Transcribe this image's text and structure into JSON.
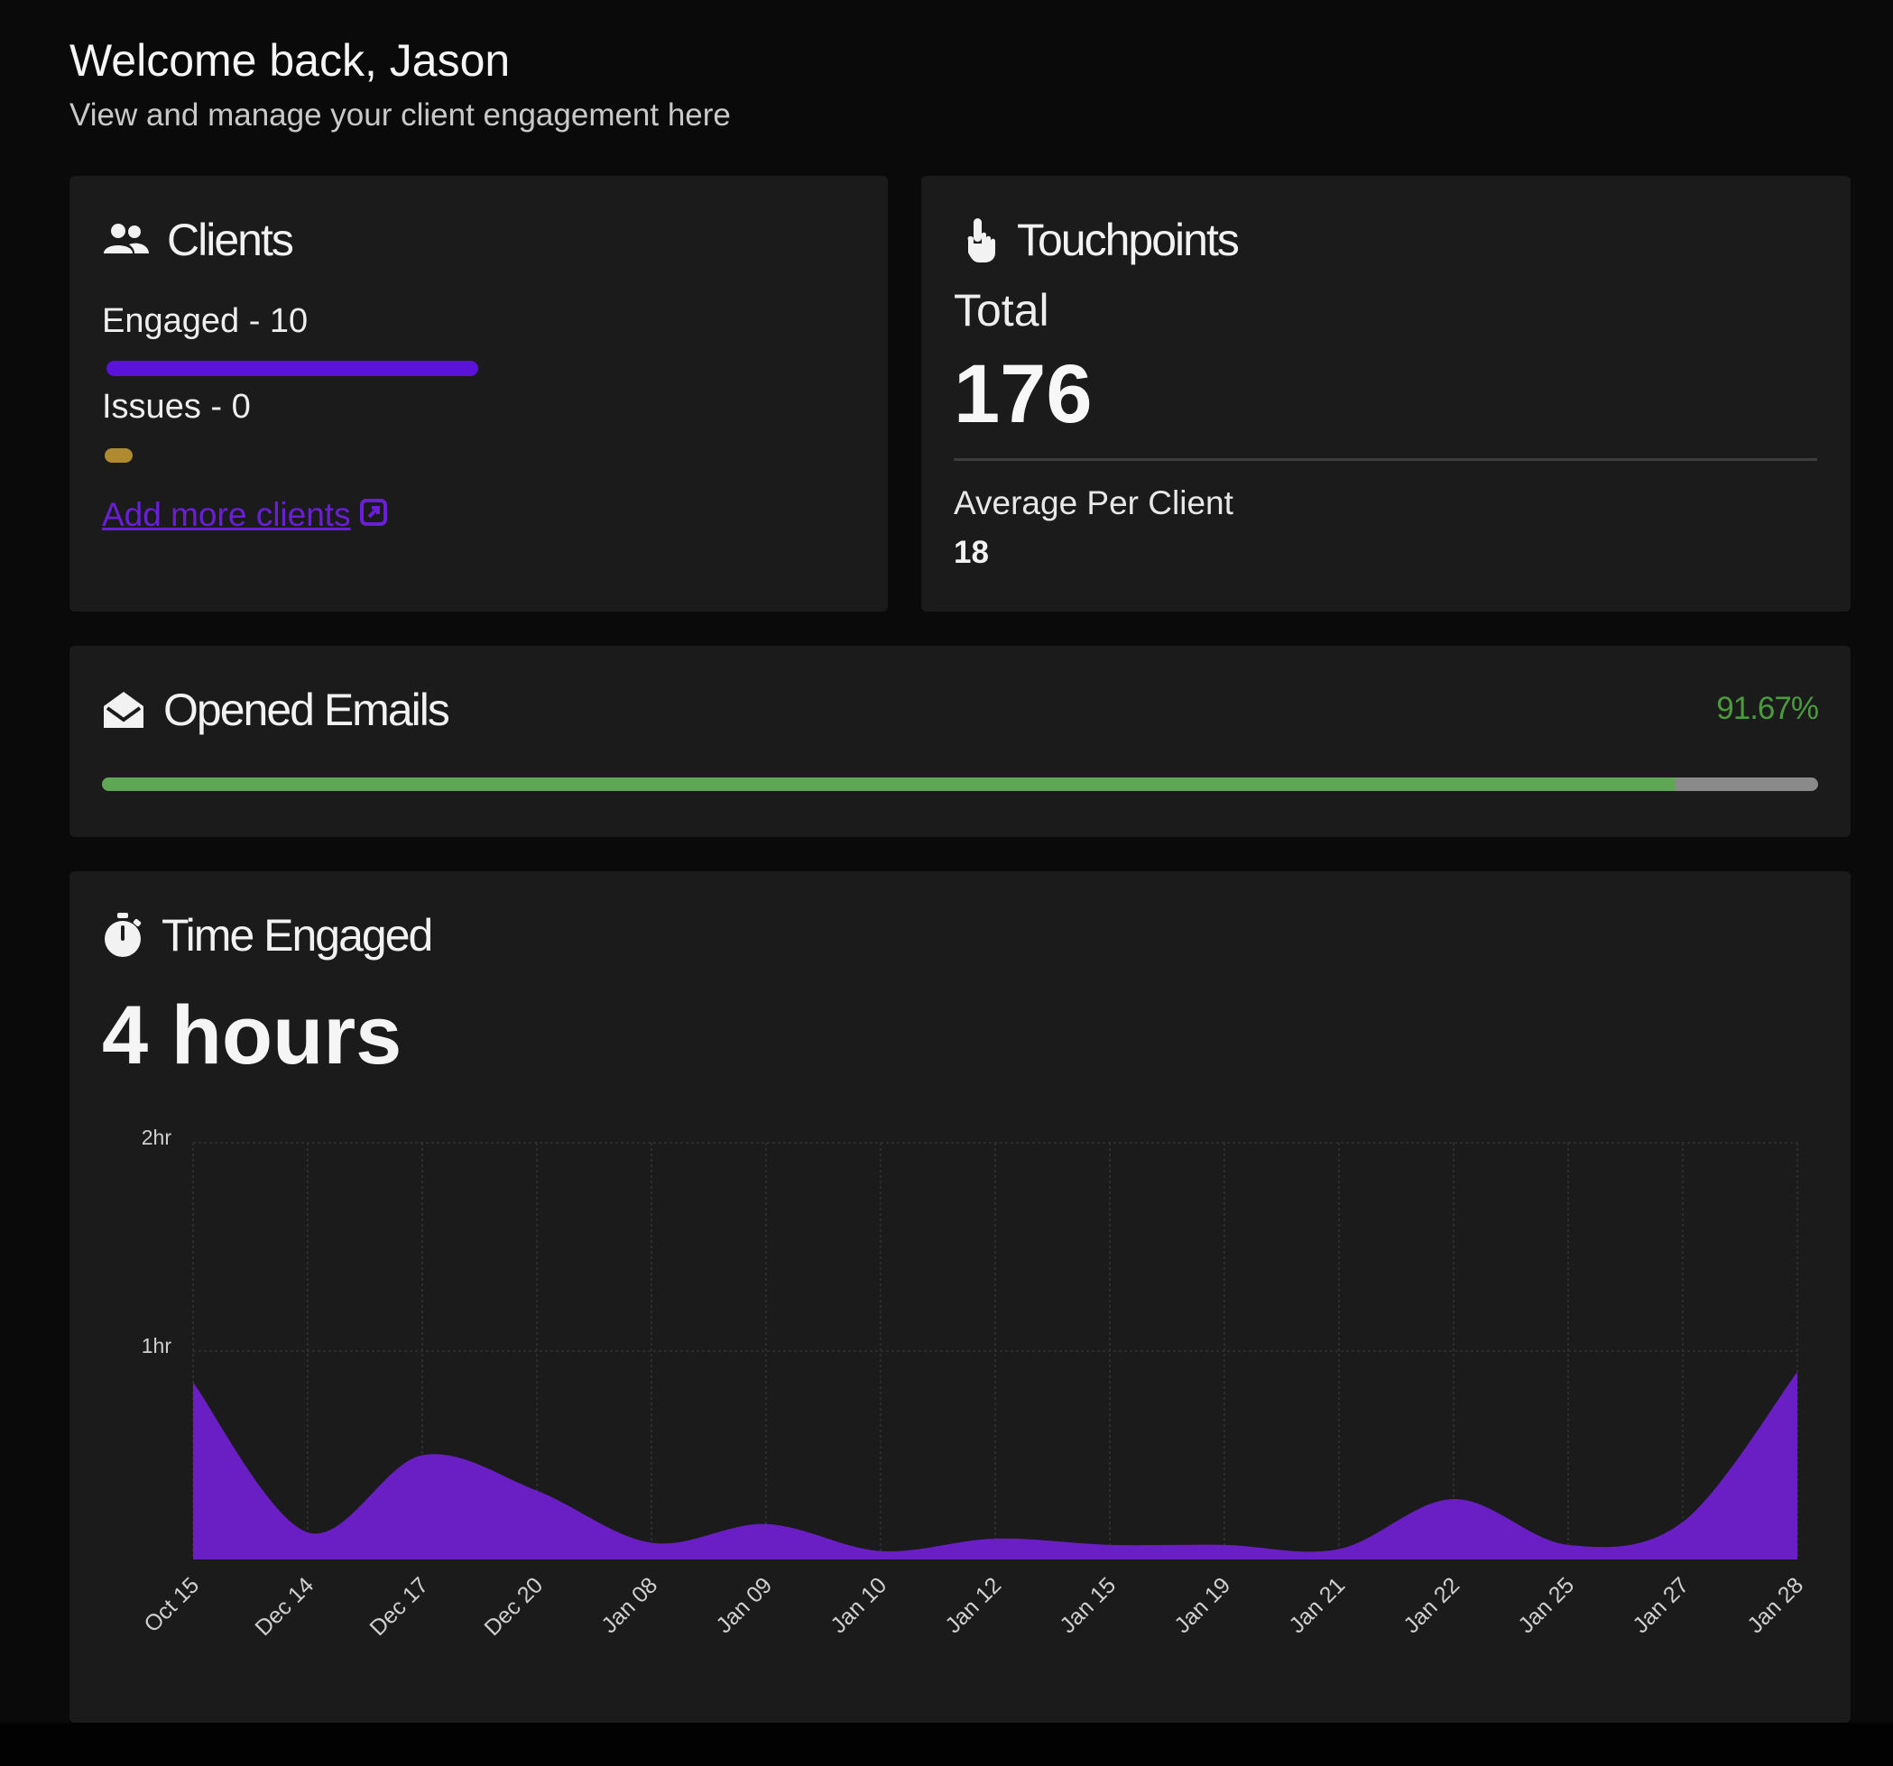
{
  "header": {
    "title": "Welcome back, Jason",
    "subtitle": "View and manage your client engagement here"
  },
  "clients": {
    "title": "Clients",
    "icon": "users-icon",
    "engaged_label": "Engaged - 10",
    "engaged_count": 10,
    "issues_label": "Issues - 0",
    "issues_count": 0,
    "engaged_color": "#5b12d9",
    "issues_color": "#b08a2e",
    "add_link": "Add more clients",
    "add_link_icon": "external-link-icon"
  },
  "touchpoints": {
    "title": "Touchpoints",
    "icon": "hand-pointer-icon",
    "total_label": "Total",
    "total_value": "176",
    "avg_label": "Average Per Client",
    "avg_value": "18"
  },
  "emails": {
    "title": "Opened Emails",
    "icon": "envelope-open-icon",
    "percent_label": "91.67%",
    "percent": 91.67,
    "fill_color": "#5fa655",
    "track_color": "#8a8a8a"
  },
  "time_engaged": {
    "title": "Time Engaged",
    "icon": "stopwatch-icon",
    "total": "4 hours"
  },
  "chart_data": {
    "type": "area",
    "x": [
      "Oct 15",
      "Dec 14",
      "Dec 17",
      "Dec 20",
      "Jan 08",
      "Jan 09",
      "Jan 10",
      "Jan 12",
      "Jan 15",
      "Jan 19",
      "Jan 21",
      "Jan 22",
      "Jan 25",
      "Jan 27",
      "Jan 28"
    ],
    "y_hours": [
      0.85,
      0.13,
      0.5,
      0.33,
      0.08,
      0.17,
      0.04,
      0.1,
      0.07,
      0.07,
      0.05,
      0.29,
      0.07,
      0.18,
      0.9
    ],
    "y_ticks": [
      {
        "value": 1,
        "label": "1hr"
      },
      {
        "value": 2,
        "label": "2hr"
      }
    ],
    "ylim": [
      0,
      2
    ],
    "grid": true,
    "fill_color": "#6a1fc4",
    "title": "",
    "xlabel": "",
    "ylabel": ""
  }
}
